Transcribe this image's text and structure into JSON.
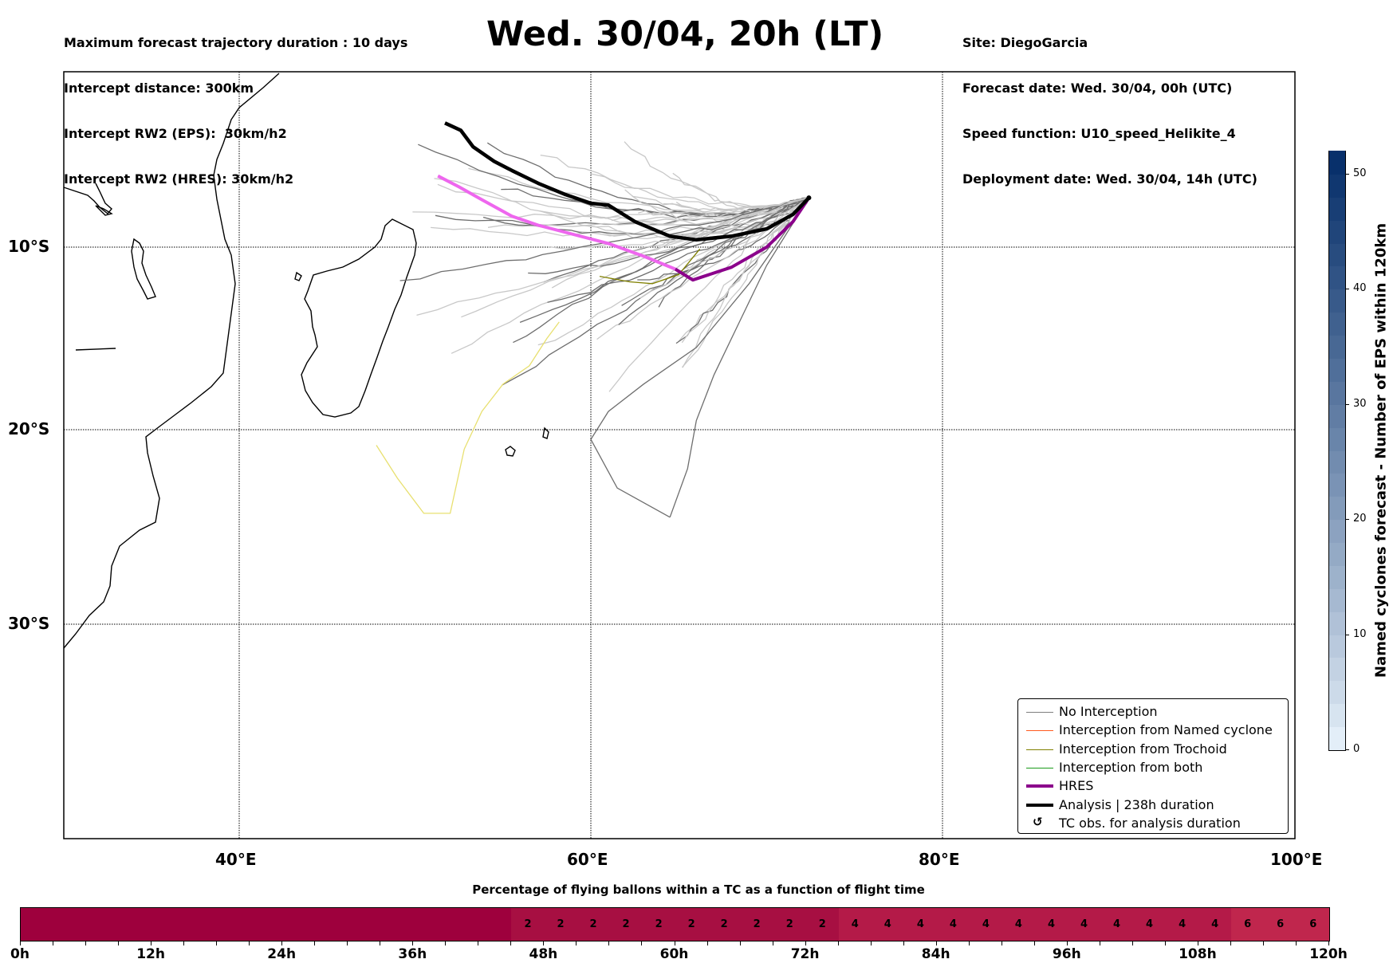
{
  "header": {
    "title": "Wed. 30/04, 20h (LT)",
    "left_info": [
      "Maximum forecast trajectory duration : 10 days",
      "Intercept distance: 300km",
      "Intercept RW2 (EPS):  30km/h2",
      "Intercept RW2 (HRES): 30km/h2"
    ],
    "right_info": [
      "Site: DiegoGarcia",
      "Forecast date: Wed. 30/04, 00h (UTC)",
      "Speed function: U10_speed_Helikite_4",
      "Deployment date: Wed. 30/04, 14h (UTC)"
    ]
  },
  "map": {
    "lon_range": [
      30,
      100
    ],
    "lat_range": [
      -43.7,
      0.3
    ],
    "lon_ticks": [
      {
        "value": 40,
        "label": "40°E"
      },
      {
        "value": 60,
        "label": "60°E"
      },
      {
        "value": 80,
        "label": "80°E"
      },
      {
        "value": 100,
        "label": "100°E"
      }
    ],
    "lat_ticks": [
      {
        "value": -10,
        "label": "10°S"
      },
      {
        "value": -20,
        "label": "20°S"
      },
      {
        "value": -30,
        "label": "30°S"
      }
    ],
    "site": {
      "name": "DiegoGarcia",
      "lon": 72.4,
      "lat": -7.3
    },
    "colors": {
      "no_interception_far": "#c8c8c8",
      "no_interception_near": "#6e6e6e",
      "named_cyclone": "#ff5a1e",
      "trochoid": "#808000",
      "trochoid_light": "#e8e070",
      "both": "#1a9a1a",
      "hres": "#8b008b",
      "hres_light": "#ee66ee",
      "analysis": "#000000"
    },
    "analysis_track": [
      [
        72.4,
        -7.3
      ],
      [
        71.5,
        -8.2
      ],
      [
        70,
        -9.0
      ],
      [
        68,
        -9.4
      ],
      [
        66,
        -9.6
      ],
      [
        64.5,
        -9.4
      ],
      [
        62.5,
        -8.6
      ],
      [
        61,
        -7.7
      ],
      [
        60,
        -7.6
      ],
      [
        58.5,
        -7.1
      ],
      [
        57,
        -6.5
      ],
      [
        55.5,
        -5.8
      ],
      [
        54.5,
        -5.3
      ],
      [
        53.3,
        -4.5
      ],
      [
        52.6,
        -3.6
      ],
      [
        51.7,
        -3.2
      ]
    ],
    "hres_track": [
      [
        72.4,
        -7.3
      ],
      [
        71.5,
        -8.6
      ],
      [
        70,
        -10
      ],
      [
        68,
        -11.1
      ],
      [
        65.8,
        -11.8
      ],
      [
        64.8,
        -11.2
      ],
      [
        63,
        -10.5
      ],
      [
        61,
        -9.8
      ],
      [
        59,
        -9.3
      ],
      [
        57,
        -8.8
      ],
      [
        55.5,
        -8.3
      ],
      [
        53.8,
        -7.4
      ],
      [
        52.5,
        -6.7
      ],
      [
        51.3,
        -6.1
      ]
    ]
  },
  "legend": {
    "items": [
      {
        "label": "No Interception",
        "style": "line",
        "color": "#7f7f7f"
      },
      {
        "label": "Interception from Named cyclone",
        "style": "line",
        "color": "#ff5a1e"
      },
      {
        "label": "Interception from Trochoid",
        "style": "line",
        "color": "#808000"
      },
      {
        "label": "Interception from both",
        "style": "line",
        "color": "#1a9a1a"
      },
      {
        "label": "HRES",
        "style": "thick",
        "color": "#8b008b"
      },
      {
        "label": "Analysis | 238h duration",
        "style": "thick",
        "color": "#000000"
      },
      {
        "label": "TC obs. for analysis duration",
        "style": "glyph",
        "glyph": "↺"
      }
    ]
  },
  "colorbar": {
    "label": "Named cyclones forecast - Number of EPS within 120km",
    "range": [
      0,
      52
    ],
    "ticks": [
      "0",
      "10",
      "20",
      "30",
      "40",
      "50"
    ],
    "tick_values": [
      0,
      10,
      20,
      30,
      40,
      50
    ],
    "color_low": "#e3eef8",
    "color_high": "#08306b"
  },
  "timeline": {
    "title": "Percentage of flying ballons within a TC as a function of flight time",
    "range_hours": [
      0,
      120
    ],
    "tick_labels": [
      "0h",
      "12h",
      "24h",
      "36h",
      "48h",
      "60h",
      "72h",
      "84h",
      "96h",
      "108h",
      "120h"
    ],
    "bins_hours": 3,
    "values": [
      "",
      "",
      "",
      "",
      "",
      "",
      "",
      "",
      "",
      "",
      "",
      "",
      "",
      "",
      "",
      "2",
      "2",
      "2",
      "2",
      "2",
      "2",
      "2",
      "2",
      "2",
      "2",
      "4",
      "4",
      "4",
      "4",
      "4",
      "4",
      "4",
      "4",
      "4",
      "4",
      "4",
      "4",
      "6",
      "6",
      "6"
    ],
    "colors": {
      "0": "#9e003d",
      "2": "#a70f42",
      "4": "#b41a48",
      "6": "#c0264d"
    }
  }
}
